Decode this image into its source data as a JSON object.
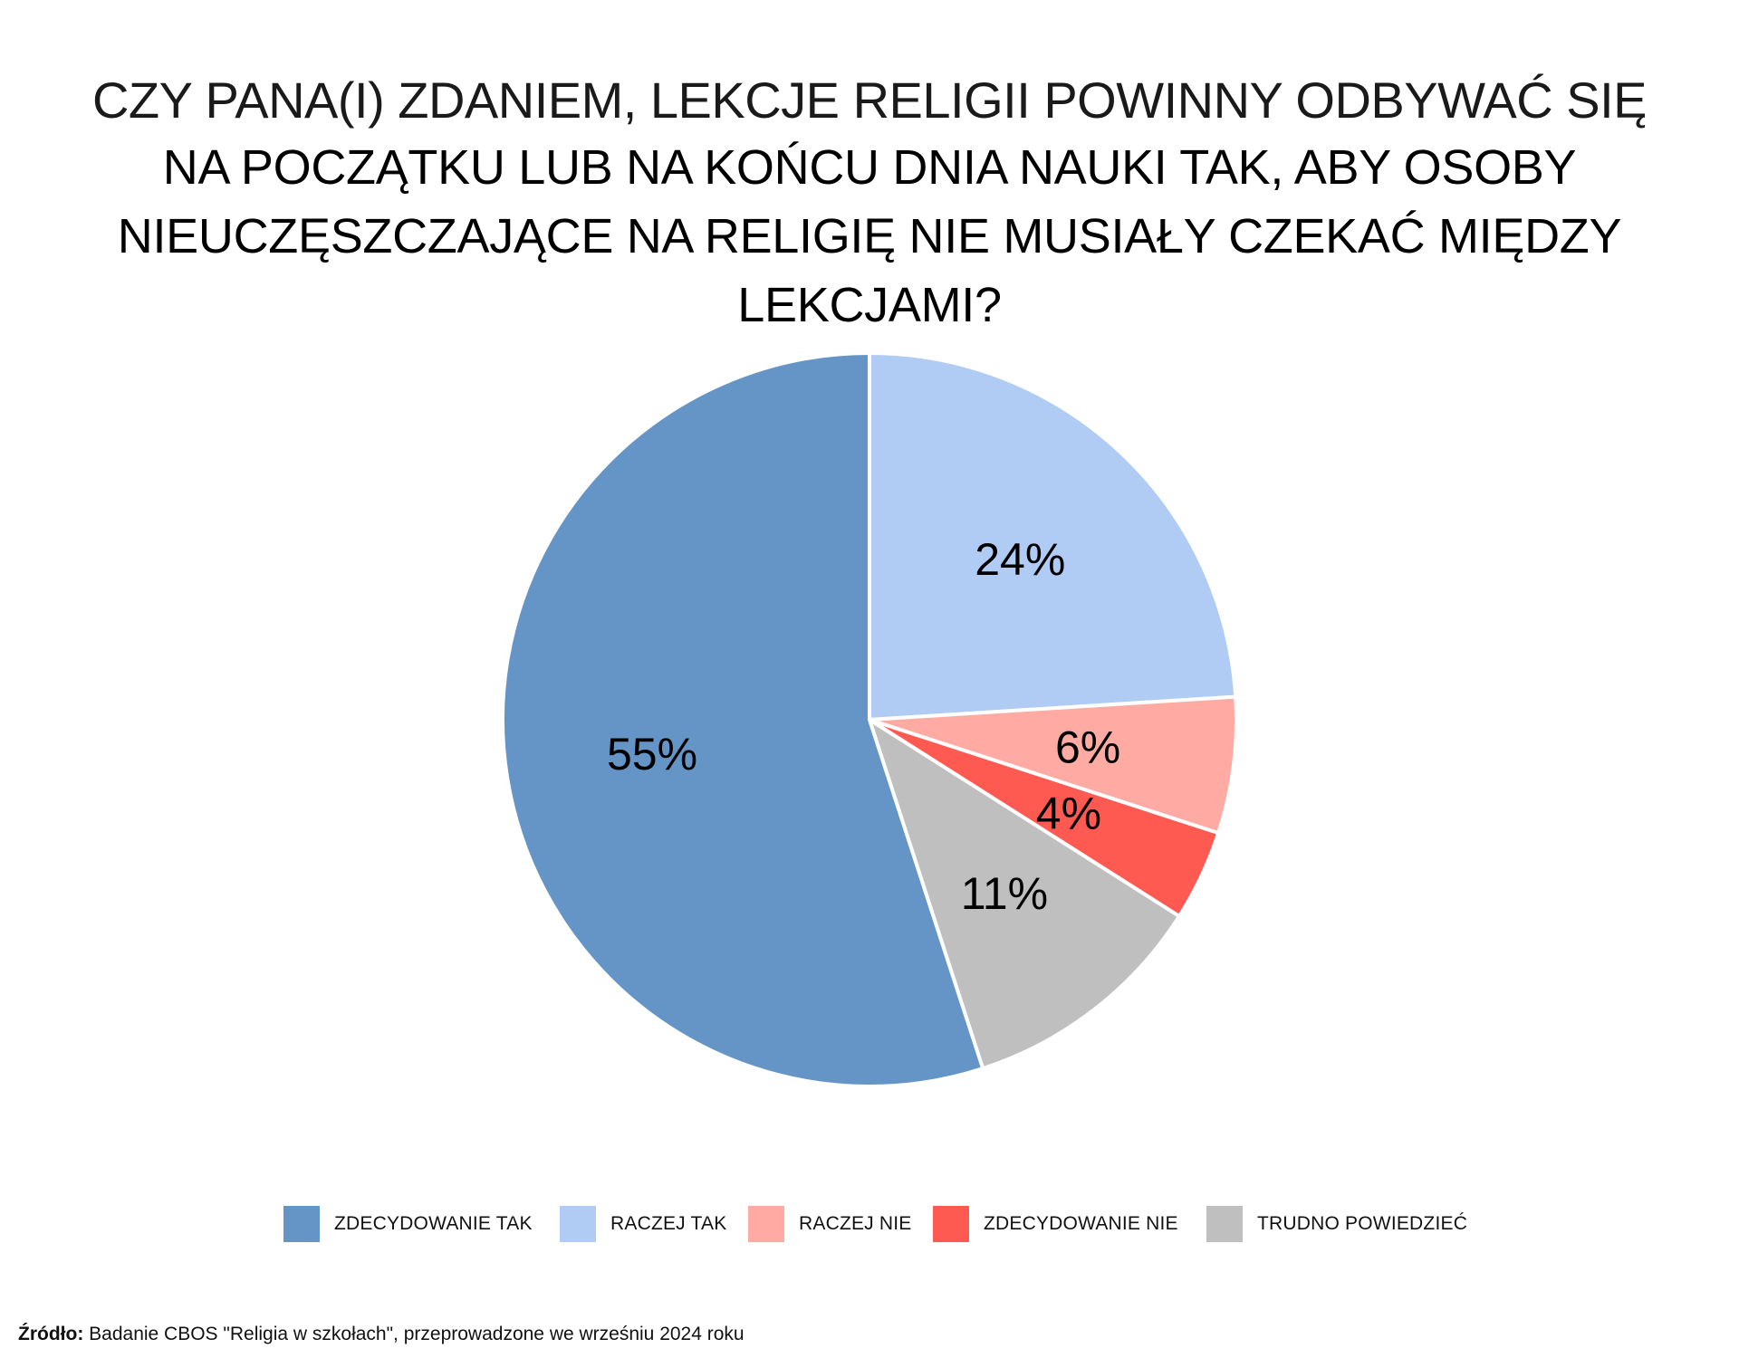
{
  "chart_data": {
    "type": "pie",
    "title": [
      "CZY PANA(I) ZDANIEM, LEKCJE RELIGII POWINNY ODBYWAĆ SIĘ",
      "NA POCZĄTKU LUB NA KOŃCU DNIA NAUKI TAK, ABY OSOBY",
      "NIEUCZĘSZCZAJĄCE NA RELIGIĘ NIE MUSIAŁY CZEKAĆ MIĘDZY LEKCJAMI?"
    ],
    "start_angle_deg": 0,
    "direction": "clockwise",
    "slices": [
      {
        "label": "RACZEJ TAK",
        "value": 24,
        "display": "24%",
        "color": "#b0cbf4"
      },
      {
        "label": "RACZEJ NIE",
        "value": 6,
        "display": "6%",
        "color": "#ffaaa2"
      },
      {
        "label": "ZDECYDOWANIE NIE",
        "value": 4,
        "display": "4%",
        "color": "#ff5a52"
      },
      {
        "label": "TRUDNO POWIEDZIEĆ",
        "value": 11,
        "display": "11%",
        "color": "#bfbfbf"
      },
      {
        "label": "ZDECYDOWANIE TAK",
        "value": 55,
        "display": "55%",
        "color": "#6495c6"
      }
    ],
    "legend": [
      {
        "label": "ZDECYDOWANIE TAK",
        "color": "#6495c6"
      },
      {
        "label": "RACZEJ TAK",
        "color": "#b0cbf4"
      },
      {
        "label": "RACZEJ NIE",
        "color": "#ffaaa2"
      },
      {
        "label": "ZDECYDOWANIE NIE",
        "color": "#ff5a52"
      },
      {
        "label": "TRUDNO POWIEDZIEĆ",
        "color": "#bfbfbf"
      }
    ],
    "legend_placement": "bottom"
  },
  "source": {
    "prefix": "Źródło:",
    "text": " Badanie CBOS \"Religia w szkołach\", przeprowadzone we wrześniu 2024 roku"
  }
}
